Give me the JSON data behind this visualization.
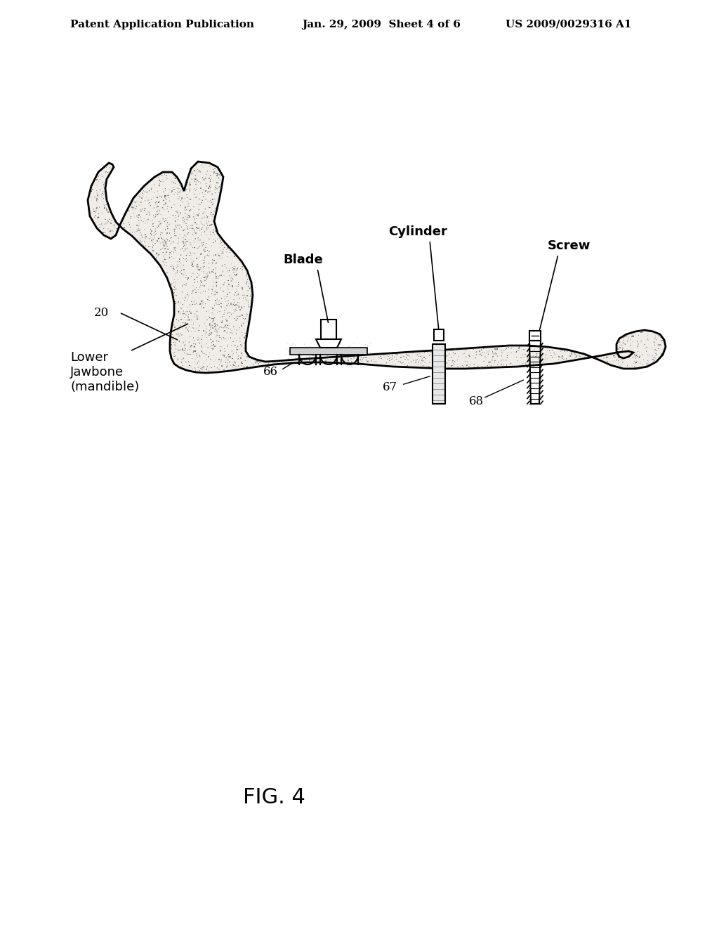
{
  "title": "FIG. 4",
  "header_left": "Patent Application Publication",
  "header_center": "Jan. 29, 2009  Sheet 4 of 6",
  "header_right": "US 2009/0029316 A1",
  "label_20": "20",
  "label_66": "66",
  "label_67": "67",
  "label_68": "68",
  "label_blade": "Blade",
  "label_cylinder": "Cylinder",
  "label_screw": "Screw",
  "label_jawbone": "Lower\nJawbone\n(mandible)",
  "bg_color": "#ffffff",
  "line_color": "#000000",
  "stipple_color": "#555555"
}
